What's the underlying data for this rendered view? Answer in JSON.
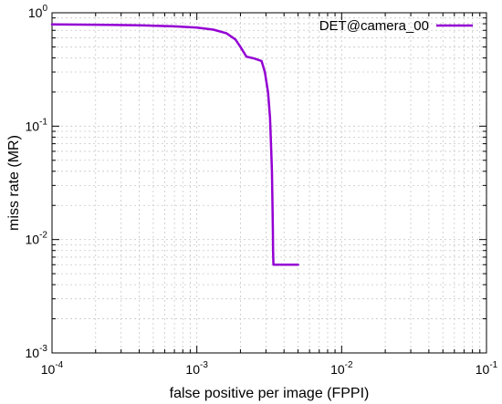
{
  "chart_data": {
    "type": "line",
    "xlabel": "false positive per image (FPPI)",
    "ylabel": "miss rate (MR)",
    "xscale": "log",
    "yscale": "log",
    "xlim": [
      0.0001,
      0.1
    ],
    "ylim": [
      0.001,
      1
    ],
    "x_ticks": [
      {
        "base": "10",
        "exp": "-4"
      },
      {
        "base": "10",
        "exp": "-3"
      },
      {
        "base": "10",
        "exp": "-2"
      },
      {
        "base": "10",
        "exp": "-1"
      }
    ],
    "y_ticks": [
      {
        "base": "10",
        "exp": "0"
      },
      {
        "base": "10",
        "exp": "-1"
      },
      {
        "base": "10",
        "exp": "-2"
      },
      {
        "base": "10",
        "exp": "-3"
      }
    ],
    "grid": true,
    "legend_position": "top-right",
    "series": [
      {
        "name": "DET@camera_00",
        "color": "#9400d3",
        "x": [
          0.0001,
          0.0002,
          0.0004,
          0.0007,
          0.001,
          0.0013,
          0.0016,
          0.00185,
          0.002,
          0.0022,
          0.0025,
          0.0028,
          0.00295,
          0.0031,
          0.0032,
          0.00325,
          0.0033,
          0.00333,
          0.00335,
          0.00336,
          0.00338,
          0.0034,
          0.0036,
          0.004,
          0.0045,
          0.005
        ],
        "y": [
          0.79,
          0.785,
          0.775,
          0.76,
          0.74,
          0.71,
          0.66,
          0.58,
          0.5,
          0.41,
          0.395,
          0.375,
          0.3,
          0.2,
          0.12,
          0.07,
          0.04,
          0.02,
          0.012,
          0.008,
          0.006,
          0.006,
          0.006,
          0.006,
          0.006,
          0.006
        ]
      }
    ]
  }
}
